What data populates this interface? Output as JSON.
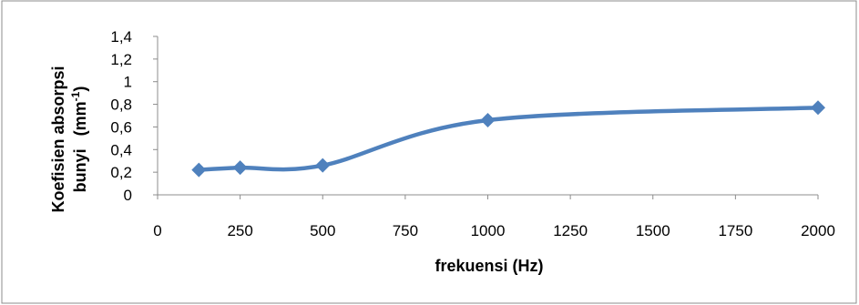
{
  "chart_data": {
    "type": "line",
    "title": "",
    "xlabel": "frekuensi (Hz)",
    "ylabel_line1": "Koefisien absorpsi",
    "ylabel_line2": "bunyi",
    "ylabel_unit": "(mm",
    "ylabel_unit_sup": "-1",
    "ylabel_unit_close": ")",
    "x_ticks": [
      "0",
      "250",
      "500",
      "750",
      "1000",
      "1250",
      "1500",
      "1750",
      "2000"
    ],
    "y_ticks": [
      "0",
      "0,2",
      "0,4",
      "0,6",
      "0,8",
      "1",
      "1,2",
      "1,4"
    ],
    "xlim": [
      0,
      2000
    ],
    "ylim": [
      0,
      1.4
    ],
    "grid": false,
    "legend": "none",
    "series": [
      {
        "x": [
          125,
          250,
          500,
          1000,
          2000
        ],
        "y": [
          0.22,
          0.24,
          0.26,
          0.66,
          0.77
        ]
      }
    ],
    "colors": {
      "line": "#4f81bd",
      "border": "#8c8c8c",
      "axis": "#8c8c8c"
    }
  }
}
